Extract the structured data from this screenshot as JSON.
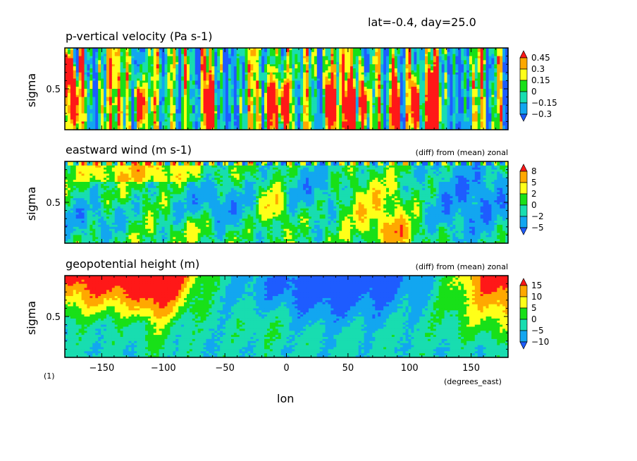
{
  "header": {
    "label": "lat=-0.4, day=25.0"
  },
  "footer": {
    "page_label": "(1)",
    "xunit": "(degrees_east)",
    "xlabel": "lon"
  },
  "chart_data": [
    {
      "type": "heatmap",
      "title": "p-vertical velocity (Pa s-1)",
      "subtitle": "",
      "ylabel": "sigma",
      "xlim": [
        -180,
        180
      ],
      "ylim": [
        1,
        0
      ],
      "yticks": [
        0.5
      ],
      "xticks": [
        -150,
        -100,
        -50,
        0,
        50,
        100,
        150
      ],
      "colorbar": {
        "labels": [
          "0.45",
          "0.3",
          "0.15",
          "0",
          "-0.15",
          "-0.3"
        ],
        "colors": [
          "#1e5cff",
          "#12a6f0",
          "#18ddb0",
          "#18e018",
          "#ffff18",
          "#ffa800",
          "#ff1818"
        ]
      },
      "field": "vertical"
    },
    {
      "type": "heatmap",
      "title": "eastward wind (m s-1)",
      "subtitle": "(diff) from (mean) zonal",
      "ylabel": "sigma",
      "xlim": [
        -180,
        180
      ],
      "ylim": [
        1,
        0
      ],
      "yticks": [
        0.5
      ],
      "xticks": [
        -150,
        -100,
        -50,
        0,
        50,
        100,
        150
      ],
      "colorbar": {
        "labels": [
          "8",
          "5",
          "2",
          "0",
          "-2",
          "-5"
        ],
        "colors": [
          "#1e5cff",
          "#12a6f0",
          "#18ddb0",
          "#18e018",
          "#ffff18",
          "#ffa800",
          "#ff1818"
        ]
      },
      "field": "wind"
    },
    {
      "type": "heatmap",
      "title": "geopotential height (m)",
      "subtitle": "(diff) from (mean) zonal",
      "ylabel": "sigma",
      "xlim": [
        -180,
        180
      ],
      "ylim": [
        1,
        0
      ],
      "yticks": [
        0.5
      ],
      "xticks": [
        -150,
        -100,
        -50,
        0,
        50,
        100,
        150
      ],
      "colorbar": {
        "labels": [
          "15",
          "10",
          "5",
          "0",
          "-5",
          "-10"
        ],
        "colors": [
          "#1e5cff",
          "#12a6f0",
          "#18ddb0",
          "#18e018",
          "#ffff18",
          "#ffa800",
          "#ff1818"
        ]
      },
      "field": "height"
    }
  ]
}
